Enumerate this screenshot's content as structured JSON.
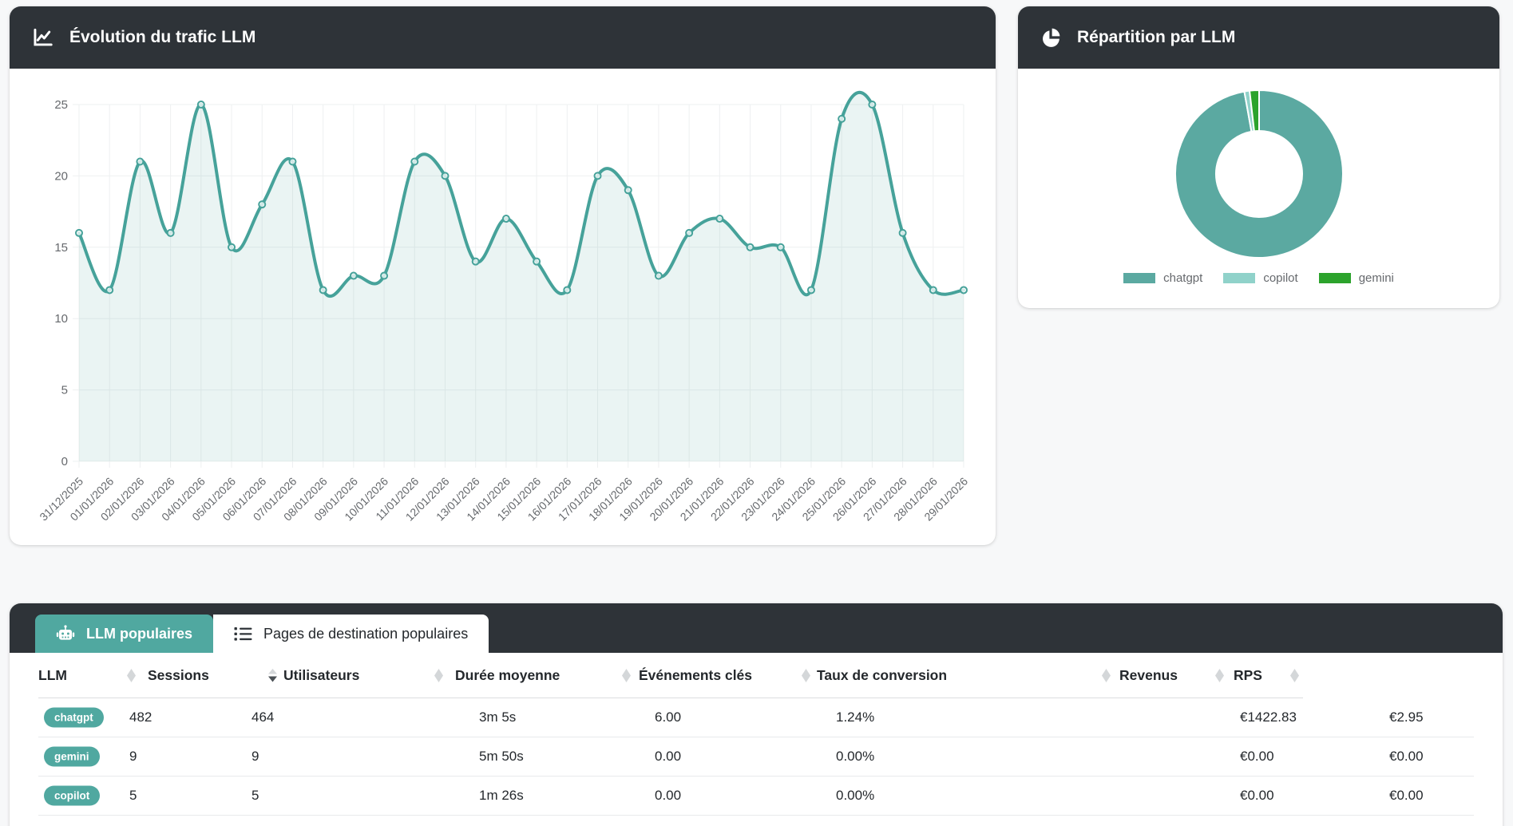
{
  "traffic_card": {
    "title": "Évolution du trafic LLM"
  },
  "donut_card": {
    "title": "Répartition par LLM"
  },
  "table_card": {
    "tabs": [
      {
        "label": "LLM populaires",
        "active": true
      },
      {
        "label": "Pages de destination populaires",
        "active": false
      }
    ],
    "columns": [
      {
        "label": "LLM",
        "sort": "none"
      },
      {
        "label": "Sessions",
        "sort": "desc"
      },
      {
        "label": "Utilisateurs",
        "sort": "none"
      },
      {
        "label": "Durée moyenne",
        "sort": "none"
      },
      {
        "label": "Événements clés",
        "sort": "none"
      },
      {
        "label": "Taux de conversion",
        "sort": "none"
      },
      {
        "label": "Revenus",
        "sort": "none"
      },
      {
        "label": "RPS",
        "sort": "none"
      }
    ],
    "rows": [
      {
        "llm": "chatgpt",
        "sessions": "482",
        "users": "464",
        "avg_duration": "3m 5s",
        "key_events": "6.00",
        "conversion_rate": "1.24%",
        "revenue": "€1422.83",
        "rps": "€2.95"
      },
      {
        "llm": "gemini",
        "sessions": "9",
        "users": "9",
        "avg_duration": "5m 50s",
        "key_events": "0.00",
        "conversion_rate": "0.00%",
        "revenue": "€0.00",
        "rps": "€0.00"
      },
      {
        "llm": "copilot",
        "sessions": "5",
        "users": "5",
        "avg_duration": "1m 26s",
        "key_events": "0.00",
        "conversion_rate": "0.00%",
        "revenue": "€0.00",
        "rps": "€0.00"
      }
    ],
    "badge_color": "#50a8a0"
  },
  "colors": {
    "header_dark": "#2e3338",
    "teal_line": "#46a29a",
    "teal_fill": "rgba(90,168,161,0.13)",
    "grid": "#eef0f1",
    "tick_text": "#66696d",
    "sort_idle": "#d4d7d9",
    "sort_active": "#4b5156"
  },
  "chart_data": [
    {
      "type": "line",
      "title": "Évolution du trafic LLM",
      "x": [
        "31/12/2025",
        "01/01/2026",
        "02/01/2026",
        "03/01/2026",
        "04/01/2026",
        "05/01/2026",
        "06/01/2026",
        "07/01/2026",
        "08/01/2026",
        "09/01/2026",
        "10/01/2026",
        "11/01/2026",
        "12/01/2026",
        "13/01/2026",
        "14/01/2026",
        "15/01/2026",
        "16/01/2026",
        "17/01/2026",
        "18/01/2026",
        "19/01/2026",
        "20/01/2026",
        "21/01/2026",
        "22/01/2026",
        "23/01/2026",
        "24/01/2026",
        "25/01/2026",
        "26/01/2026",
        "27/01/2026",
        "28/01/2026",
        "29/01/2026"
      ],
      "values": [
        16,
        12,
        21,
        16,
        25,
        15,
        18,
        21,
        12,
        13,
        13,
        21,
        20,
        14,
        17,
        14,
        12,
        20,
        19,
        13,
        16,
        17,
        15,
        15,
        12,
        24,
        25,
        16,
        12,
        12
      ],
      "ylim": [
        0,
        25
      ],
      "y_ticks": [
        0,
        5,
        10,
        15,
        20,
        25
      ],
      "grid": true,
      "line_color": "#46a29a",
      "fill_color": "rgba(90,168,161,0.13)"
    },
    {
      "type": "pie",
      "title": "Répartition par LLM",
      "donut": true,
      "labels": [
        "chatgpt",
        "copilot",
        "gemini"
      ],
      "values": [
        482,
        5,
        9
      ],
      "colors": [
        "#5ba9a1",
        "#90d2ca",
        "#2ca32c"
      ],
      "legend_position": "bottom"
    }
  ]
}
